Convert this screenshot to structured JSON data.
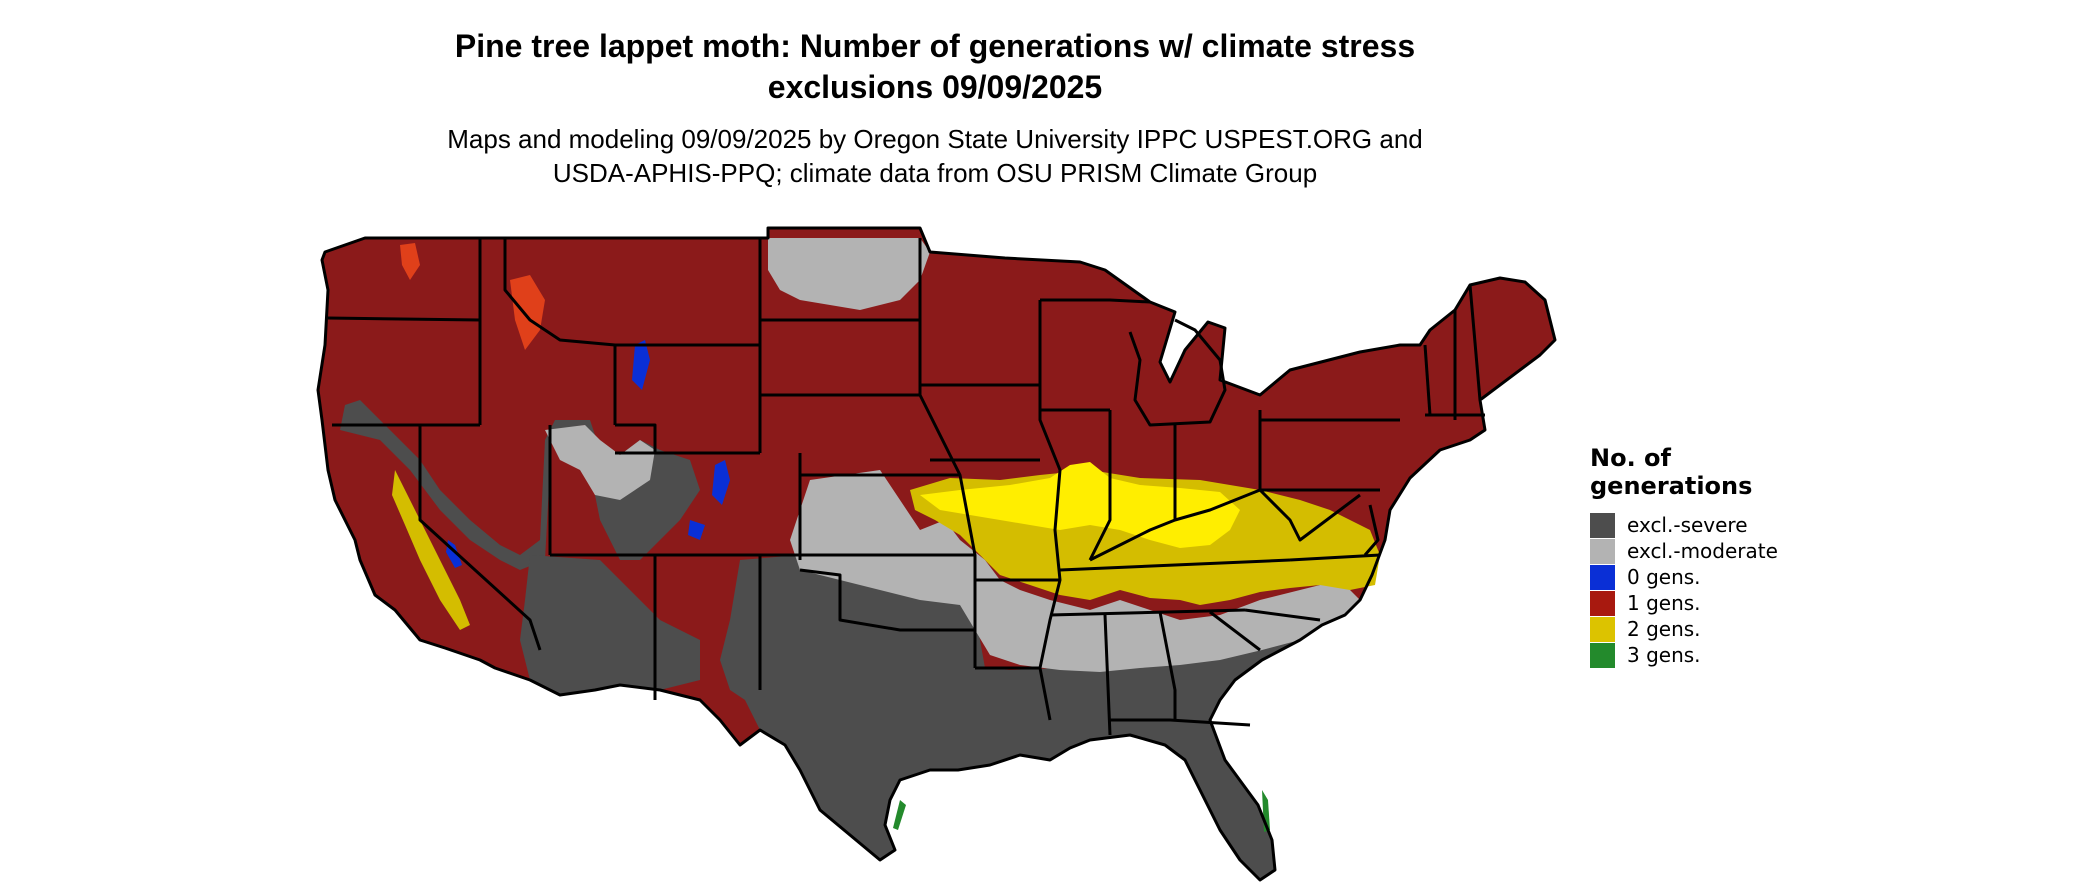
{
  "title_line1": "Pine tree lappet moth: Number of generations w/ climate stress",
  "title_line2": "exclusions 09/09/2025",
  "subtitle_line1": "Maps and modeling 09/09/2025 by Oregon State University IPPC USPEST.ORG and",
  "subtitle_line2": "USDA-APHIS-PPQ; climate data from OSU PRISM Climate Group",
  "legend": {
    "title_line1": "No. of",
    "title_line2": "generations",
    "items": [
      {
        "label": "excl.-severe",
        "color": "#4d4d4d"
      },
      {
        "label": "excl.-moderate",
        "color": "#b3b3b3"
      },
      {
        "label": "0 gens.",
        "color": "#0a2fd6"
      },
      {
        "label": "1 gens.",
        "color": "#a8190f"
      },
      {
        "label": "2 gens.",
        "color": "#dcc300"
      },
      {
        "label": "3 gens.",
        "color": "#238a2c"
      }
    ]
  },
  "colors": {
    "excl_severe": "#4d4d4d",
    "excl_moderate": "#b3b3b3",
    "gen1": "#8b1a1a",
    "gen1_bright": "#e0401a",
    "gen0": "#0a2fd6",
    "gen2": "#d4bd00",
    "gen2_bright": "#ffee00",
    "gen3": "#238a2c",
    "border": "#000000"
  }
}
